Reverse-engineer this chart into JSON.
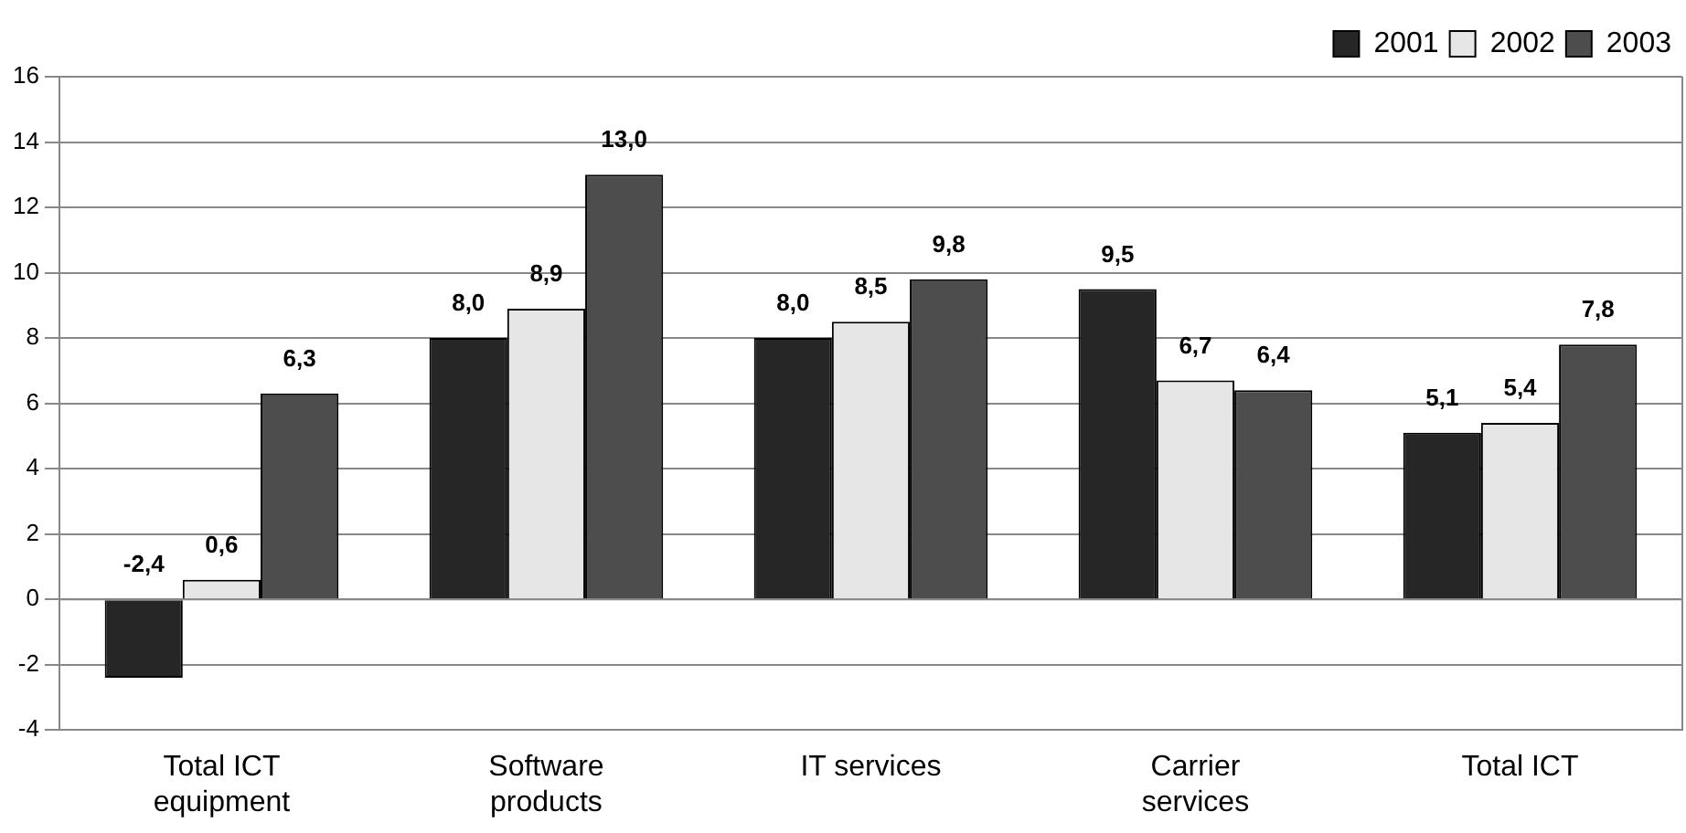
{
  "chart_data": {
    "type": "bar",
    "categories": [
      "Total ICT equipment",
      "Software products",
      "IT services",
      "Carrier services",
      "Total ICT"
    ],
    "series": [
      {
        "name": "2001",
        "color": "#262626",
        "values": [
          -2.4,
          8.0,
          8.0,
          9.5,
          5.1
        ],
        "value_labels": [
          "-2,4",
          "8,0",
          "8,0",
          "9,5",
          "5,1"
        ]
      },
      {
        "name": "2002",
        "color": "#e6e6e6",
        "values": [
          0.6,
          8.9,
          8.5,
          6.7,
          5.4
        ],
        "value_labels": [
          "0,6",
          "8,9",
          "8,5",
          "6,7",
          "5,4"
        ]
      },
      {
        "name": "2003",
        "color": "#4d4d4d",
        "values": [
          6.3,
          13.0,
          9.8,
          6.4,
          7.8
        ],
        "value_labels": [
          "6,3",
          "13,0",
          "9,8",
          "6,4",
          "7,8"
        ]
      }
    ],
    "ylim": [
      -4,
      16
    ],
    "yticks": [
      -4,
      -2,
      0,
      2,
      4,
      6,
      8,
      10,
      12,
      14,
      16
    ],
    "grid": "y",
    "legend": "top right"
  }
}
